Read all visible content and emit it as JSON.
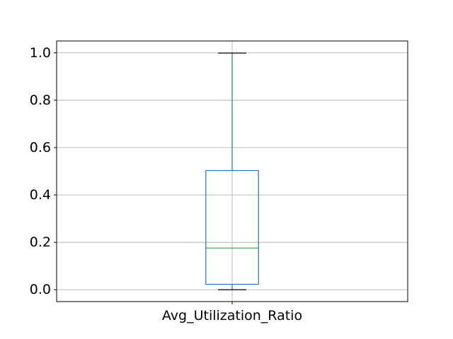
{
  "chart_data": {
    "type": "box",
    "title": "",
    "xlabel": "",
    "ylabel": "",
    "categories": [
      "Avg_Utilization_Ratio"
    ],
    "boxes": [
      {
        "name": "Avg_Utilization_Ratio",
        "whisker_low": 0.0,
        "q1": 0.023,
        "median": 0.176,
        "q3": 0.503,
        "whisker_high": 0.999
      }
    ],
    "yticks": [
      0.0,
      0.2,
      0.4,
      0.6,
      0.8,
      1.0
    ],
    "ytick_labels": [
      "0.0",
      "0.2",
      "0.4",
      "0.6",
      "0.8",
      "1.0"
    ],
    "ylim": [
      -0.05,
      1.05
    ],
    "grid": true,
    "colors": {
      "box": "#1f77b4",
      "median": "#2ca02c",
      "whisker_cap": "#000000",
      "grid": "#b0b0b0",
      "axes": "#000000"
    }
  }
}
